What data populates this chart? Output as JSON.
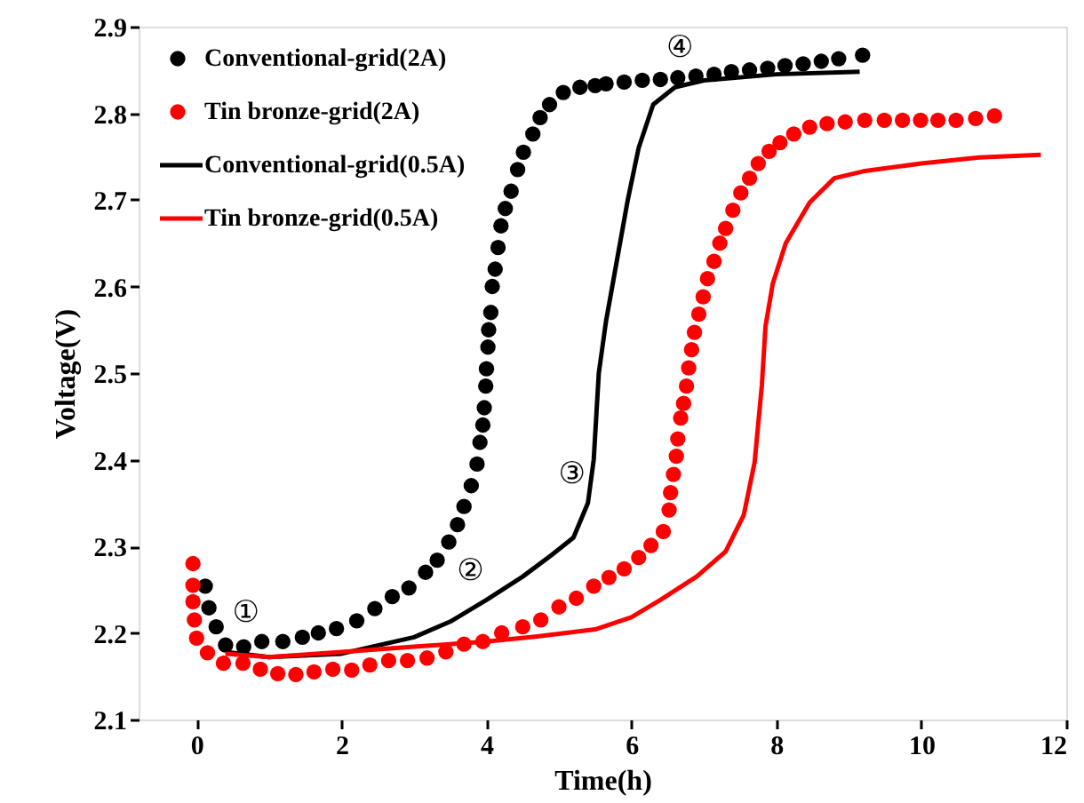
{
  "chart_data": {
    "type": "scatter",
    "xlabel": "Time(h)",
    "ylabel": "Voltage(V)",
    "xlim": [
      -0.8,
      12
    ],
    "xticks": [
      0,
      2,
      4,
      6,
      8,
      10,
      12
    ],
    "ylim": [
      2.1,
      2.9
    ],
    "yticks": [
      2.1,
      2.2,
      2.3,
      2.4,
      2.5,
      2.6,
      2.7,
      2.8,
      2.9
    ],
    "grid": false,
    "legend": "top left",
    "series": [
      {
        "name": "Conventional-grid(2A)",
        "marker": "circle",
        "color": "#000000",
        "x": [
          0.12,
          0.17,
          0.27,
          0.4,
          0.65,
          0.9,
          1.19,
          1.46,
          1.68,
          1.93,
          2.21,
          2.46,
          2.7,
          2.93,
          3.16,
          3.32,
          3.48,
          3.6,
          3.69,
          3.79,
          3.87,
          3.91,
          3.95,
          3.97,
          3.99,
          4.0,
          4.02,
          4.03,
          4.06,
          4.08,
          4.12,
          4.16,
          4.2,
          4.26,
          4.34,
          4.43,
          4.51,
          4.64,
          4.74,
          4.87,
          5.06,
          5.29,
          5.5,
          5.65,
          5.9,
          6.15,
          6.4,
          6.64,
          6.89,
          7.14,
          7.38,
          7.63,
          7.88,
          8.12,
          8.37,
          8.62,
          8.86,
          9.19
        ],
        "values": [
          2.254,
          2.229,
          2.207,
          2.186,
          2.184,
          2.19,
          2.19,
          2.195,
          2.2,
          2.205,
          2.214,
          2.228,
          2.242,
          2.252,
          2.27,
          2.284,
          2.305,
          2.325,
          2.346,
          2.37,
          2.395,
          2.42,
          2.44,
          2.46,
          2.485,
          2.505,
          2.53,
          2.55,
          2.57,
          2.6,
          2.62,
          2.645,
          2.67,
          2.69,
          2.71,
          2.735,
          2.755,
          2.776,
          2.795,
          2.81,
          2.824,
          2.83,
          2.832,
          2.834,
          2.836,
          2.838,
          2.839,
          2.841,
          2.843,
          2.845,
          2.848,
          2.85,
          2.852,
          2.855,
          2.857,
          2.86,
          2.863,
          2.867
        ]
      },
      {
        "name": "Tin bronze-grid(2A)",
        "marker": "circle",
        "color": "#ff0000",
        "x": [
          -0.05,
          -0.05,
          -0.05,
          -0.03,
          0.0,
          0.15,
          0.37,
          0.64,
          0.88,
          1.12,
          1.37,
          1.62,
          1.88,
          2.14,
          2.39,
          2.65,
          2.91,
          3.18,
          3.44,
          3.69,
          3.95,
          4.21,
          4.5,
          4.75,
          5.0,
          5.24,
          5.48,
          5.69,
          5.9,
          6.1,
          6.27,
          6.44,
          6.52,
          6.54,
          6.58,
          6.62,
          6.64,
          6.68,
          6.72,
          6.76,
          6.79,
          6.83,
          6.87,
          6.93,
          6.99,
          7.05,
          7.14,
          7.22,
          7.3,
          7.4,
          7.51,
          7.63,
          7.75,
          7.9,
          8.05,
          8.24,
          8.46,
          8.7,
          8.95,
          9.22,
          9.49,
          9.74,
          9.99,
          10.23,
          10.48,
          10.75,
          11.01
        ],
        "values": [
          2.28,
          2.255,
          2.236,
          2.215,
          2.194,
          2.177,
          2.165,
          2.165,
          2.158,
          2.153,
          2.152,
          2.155,
          2.158,
          2.157,
          2.163,
          2.168,
          2.168,
          2.171,
          2.178,
          2.187,
          2.19,
          2.2,
          2.207,
          2.215,
          2.23,
          2.24,
          2.254,
          2.264,
          2.274,
          2.287,
          2.301,
          2.317,
          2.342,
          2.362,
          2.383,
          2.404,
          2.424,
          2.448,
          2.465,
          2.485,
          2.506,
          2.527,
          2.547,
          2.568,
          2.588,
          2.609,
          2.629,
          2.65,
          2.667,
          2.688,
          2.708,
          2.725,
          2.742,
          2.756,
          2.766,
          2.776,
          2.784,
          2.788,
          2.79,
          2.792,
          2.792,
          2.792,
          2.792,
          2.792,
          2.792,
          2.794,
          2.797
        ]
      },
      {
        "name": "Conventional-grid(0.5A)",
        "type": "line",
        "color": "#000000",
        "x": [
          0.4,
          1,
          2,
          3,
          3.5,
          4,
          4.5,
          4.9,
          5.2,
          5.4,
          5.48,
          5.55,
          5.65,
          5.8,
          5.95,
          6.1,
          6.3,
          6.6,
          7,
          8,
          9.15
        ],
        "values": [
          2.178,
          2.172,
          2.176,
          2.195,
          2.213,
          2.238,
          2.265,
          2.29,
          2.31,
          2.35,
          2.4,
          2.5,
          2.56,
          2.63,
          2.7,
          2.76,
          2.81,
          2.83,
          2.838,
          2.845,
          2.848
        ]
      },
      {
        "name": "Tin bronze-grid(0.5A)",
        "type": "line",
        "color": "#ff0000",
        "x": [
          0.4,
          1,
          2,
          3,
          4,
          4.7,
          5.5,
          6,
          6.4,
          6.9,
          7.3,
          7.55,
          7.7,
          7.8,
          7.85,
          7.95,
          8.13,
          8.46,
          8.8,
          9.2,
          10,
          10.8,
          11.65
        ],
        "values": [
          2.176,
          2.172,
          2.178,
          2.184,
          2.19,
          2.196,
          2.204,
          2.218,
          2.238,
          2.265,
          2.294,
          2.336,
          2.397,
          2.486,
          2.554,
          2.603,
          2.65,
          2.697,
          2.725,
          2.733,
          2.742,
          2.749,
          2.752
        ]
      }
    ],
    "annotations": [
      {
        "text": "①",
        "x": 0.9,
        "y": 2.19
      },
      {
        "text": "②",
        "x": 4,
        "y": 2.238
      },
      {
        "text": "③",
        "x": 5.4,
        "y": 2.35
      },
      {
        "text": "④",
        "x": 6.89,
        "y": 2.843
      }
    ]
  }
}
